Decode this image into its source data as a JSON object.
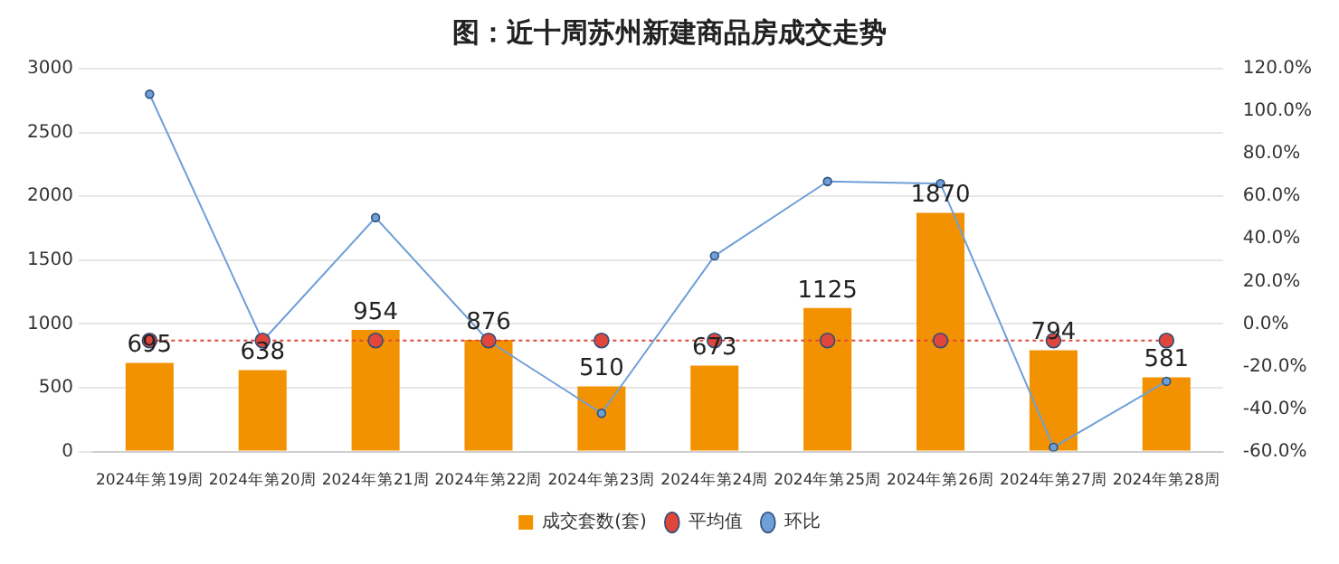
{
  "chart_data": {
    "type": "bar",
    "title": "图：近十周苏州新建商品房成交走势",
    "categories": [
      "2024年第19周",
      "2024年第20周",
      "2024年第21周",
      "2024年第22周",
      "2024年第23周",
      "2024年第24周",
      "2024年第25周",
      "2024年第26周",
      "2024年第27周",
      "2024年第28周"
    ],
    "series": [
      {
        "name": "成交套数(套)",
        "color": "#f39200",
        "values": [
          695,
          638,
          954,
          876,
          510,
          673,
          1125,
          1870,
          794,
          581
        ],
        "value_labels": [
          "695",
          "638",
          "954",
          "876",
          "510",
          "673",
          "1125",
          "1870",
          "794",
          "581"
        ]
      },
      {
        "name": "平均值",
        "type": "line",
        "color": "#e0463c",
        "marker": "circle",
        "line_style": "dotted",
        "values": [
          870,
          870,
          870,
          870,
          870,
          870,
          870,
          870,
          870,
          870
        ]
      },
      {
        "name": "环比",
        "type": "line",
        "axis": "y2",
        "color": "#6f9fd8",
        "marker": "circle",
        "line_style": "solid",
        "values": [
          108,
          -8,
          50,
          -8,
          -42,
          32,
          67,
          66,
          -58,
          -27
        ]
      }
    ],
    "ylim": [
      0,
      3000
    ],
    "yticks": [
      0,
      500,
      1000,
      1500,
      2000,
      2500,
      3000
    ],
    "y2lim": [
      -60,
      120
    ],
    "y2ticks": [
      {
        "value": -60,
        "label": "-60.0%"
      },
      {
        "value": -40,
        "label": "-40.0%"
      },
      {
        "value": -20,
        "label": "-20.0%"
      },
      {
        "value": 0,
        "label": "0.0%"
      },
      {
        "value": 20,
        "label": "20.0%"
      },
      {
        "value": 40,
        "label": "40.0%"
      },
      {
        "value": 60,
        "label": "60.0%"
      },
      {
        "value": 80,
        "label": "80.0%"
      },
      {
        "value": 100,
        "label": "100.0%"
      },
      {
        "value": 120,
        "label": "120.0%"
      }
    ],
    "grid": "y",
    "legend": "bottom"
  }
}
